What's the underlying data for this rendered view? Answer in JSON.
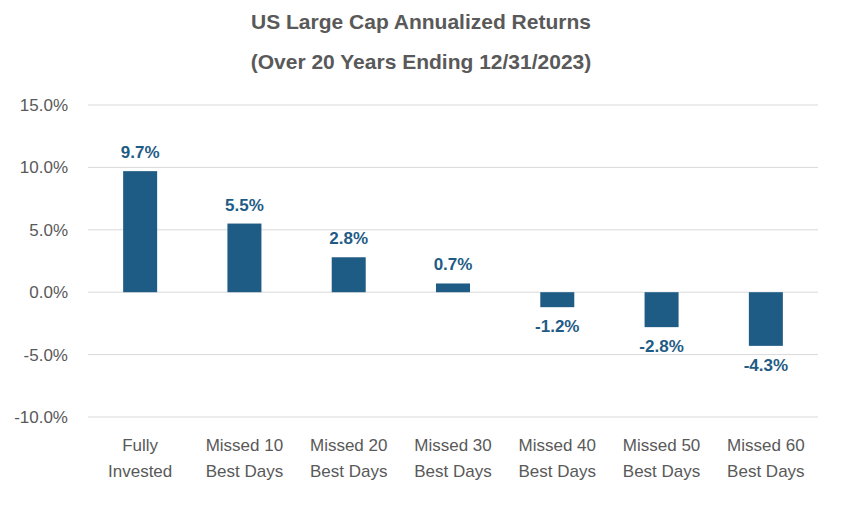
{
  "chart_data": {
    "type": "bar",
    "title": "US Large Cap Annualized Returns",
    "subtitle": "(Over 20 Years Ending 12/31/2023)",
    "categories": [
      "Fully Invested",
      "Missed 10 Best Days",
      "Missed 20 Best Days",
      "Missed 30 Best Days",
      "Missed 40 Best Days",
      "Missed 50 Best Days",
      "Missed 60 Best Days"
    ],
    "values": [
      9.7,
      5.5,
      2.8,
      0.7,
      -1.2,
      -2.8,
      -4.3
    ],
    "value_labels": [
      "9.7%",
      "5.5%",
      "2.8%",
      "0.7%",
      "-1.2%",
      "-2.8%",
      "-4.3%"
    ],
    "color": "#1f5c85",
    "ylim": [
      -10,
      15
    ],
    "yticks": [
      {
        "value": -10,
        "label": "-10.0%"
      },
      {
        "value": -5,
        "label": "-5.0%"
      },
      {
        "value": 0,
        "label": "0.0%"
      },
      {
        "value": 5,
        "label": "5.0%"
      },
      {
        "value": 10,
        "label": "10.0%"
      },
      {
        "value": 15,
        "label": "15.0%"
      }
    ],
    "grid": true,
    "data_labels": true
  }
}
